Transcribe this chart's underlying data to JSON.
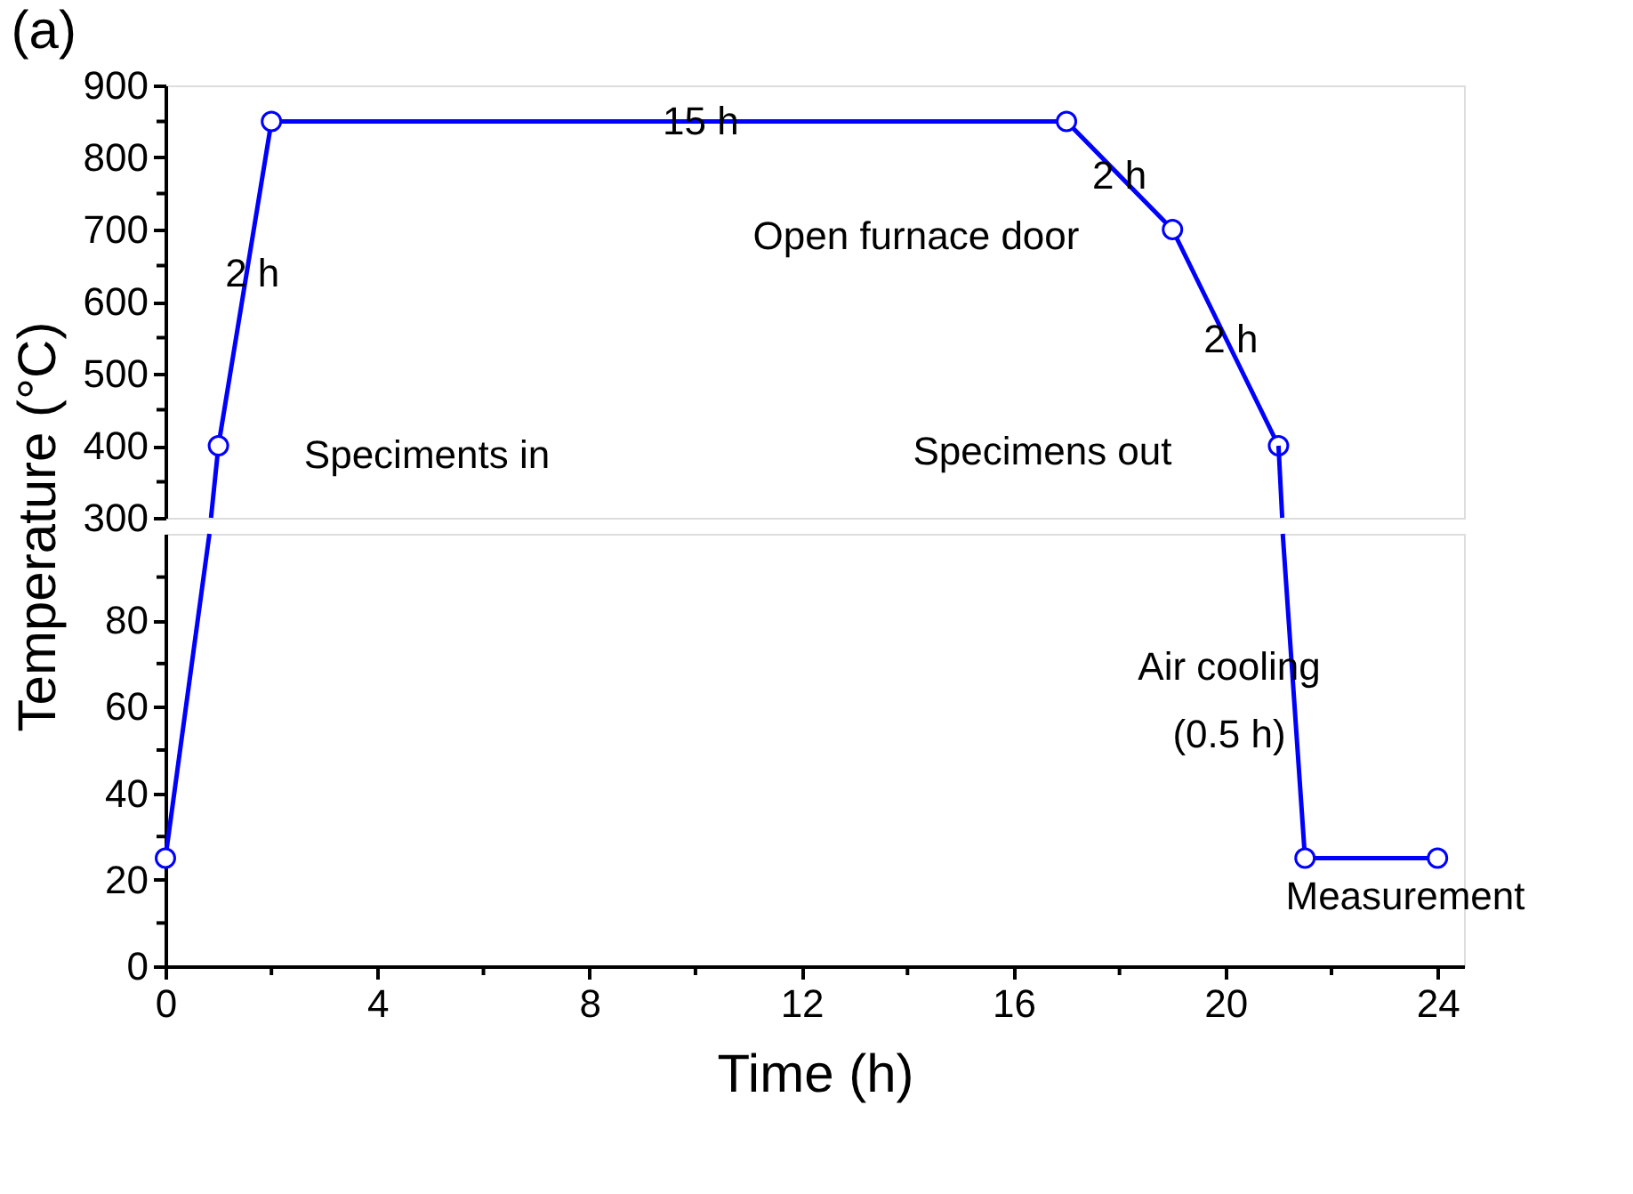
{
  "chart_data": [
    {
      "type": "line",
      "title": "(a)",
      "ylabel": "Temperature (°C)",
      "series": [
        {
          "color": "#0000ff",
          "x": [
            0.86,
            1
          ],
          "values": [
            300,
            400
          ]
        },
        {
          "color": "#0000ff",
          "marker": "circle",
          "x": [
            1,
            2,
            17,
            19,
            21
          ],
          "values": [
            400,
            850,
            850,
            700,
            400
          ]
        },
        {
          "color": "#0000ff",
          "x": [
            21,
            21.07
          ],
          "values": [
            400,
            300
          ]
        }
      ],
      "line_style": "solid",
      "grid": false,
      "tick_labels": "y",
      "xlim": [
        0,
        24.5
      ],
      "xticks": [
        0,
        4,
        8,
        12,
        16,
        20,
        24
      ],
      "ylim": [
        300,
        900
      ],
      "yticks": [
        300,
        {
          "value": 350,
          "label": null
        },
        400,
        {
          "value": 450,
          "label": null
        },
        500,
        {
          "value": 550,
          "label": null
        },
        600,
        {
          "value": 650,
          "label": null
        },
        700,
        {
          "value": 750,
          "label": null
        },
        800,
        {
          "value": 850,
          "label": null
        },
        900
      ],
      "annotations": [
        {
          "text": "2 h",
          "x": 1.64,
          "y": 638
        },
        "Speciments in",
        {
          "text": "15 h",
          "x": 10.1,
          "y": 850
        },
        {
          "text": "2 h",
          "x": 18.0,
          "y": 774
        },
        "Open furnace door",
        {
          "text": "2 h",
          "x": 20.1,
          "y": 547
        },
        "Specimens out"
      ]
    },
    {
      "type": "line",
      "xlabel": "Time (h)",
      "series": [
        {
          "color": "#0000ff",
          "x": [
            0,
            0.83
          ],
          "values": [
            25,
            100
          ]
        },
        {
          "color": "#0000ff",
          "x": [
            21.08,
            21.5,
            24
          ],
          "values": [
            100,
            25,
            25
          ]
        },
        {
          "type": "scatter",
          "color": "#0000ff",
          "marker": "circle",
          "x": [
            0,
            21.5,
            24
          ],
          "values": [
            25,
            25,
            25
          ]
        }
      ],
      "line_style": "solid",
      "grid": false,
      "xlim": [
        0,
        24.5
      ],
      "xticks": [
        0,
        {
          "value": 2,
          "label": null
        },
        4,
        {
          "value": 6,
          "label": null
        },
        8,
        {
          "value": 10,
          "label": null
        },
        12,
        {
          "value": 14,
          "label": null
        },
        16,
        {
          "value": 18,
          "label": null
        },
        20,
        {
          "value": 22,
          "label": null
        },
        24
      ],
      "ylim": [
        0,
        100
      ],
      "yticks": [
        0,
        {
          "value": 10,
          "label": null
        },
        20,
        {
          "value": 30,
          "label": null
        },
        40,
        {
          "value": 50,
          "label": null
        },
        60,
        {
          "value": 70,
          "label": null
        },
        80,
        {
          "value": 90,
          "label": null
        }
      ],
      "annotations": [
        "Air cooling\n(0.5 h)",
        "Measurement"
      ]
    }
  ]
}
